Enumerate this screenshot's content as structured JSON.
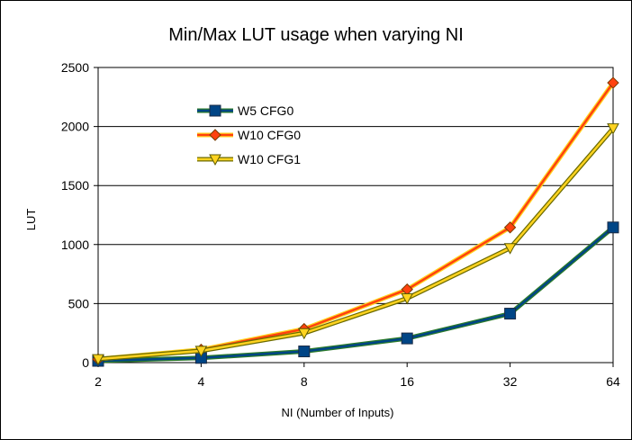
{
  "chart_data": {
    "type": "line",
    "title": "Min/Max LUT usage when varying NI",
    "xlabel": "NI (Number of Inputs)",
    "ylabel": "LUT",
    "x": [
      2,
      4,
      8,
      16,
      32,
      64
    ],
    "x_tick_labels": [
      "2",
      "4",
      "8",
      "16",
      "32",
      "64"
    ],
    "x_scale": "log2",
    "ylim": [
      0,
      2500
    ],
    "y_ticks": [
      0,
      500,
      1000,
      1500,
      2000,
      2500
    ],
    "grid": "horizontal",
    "legend_position": "top-left",
    "series": [
      {
        "name": "W5 CFG0",
        "values": [
          15,
          40,
          95,
          205,
          415,
          1145
        ],
        "line_color": "#004586",
        "edge_color": "#2a7a2a",
        "marker": "square",
        "marker_color": "#004586"
      },
      {
        "name": "W10 CFG0",
        "values": [
          30,
          110,
          285,
          620,
          1145,
          2370
        ],
        "line_color": "#ff420e",
        "edge_color": "#ffd320",
        "marker": "diamond",
        "marker_color": "#ff420e"
      },
      {
        "name": "W10 CFG1",
        "values": [
          30,
          100,
          250,
          545,
          970,
          1985
        ],
        "line_color": "#ffd320",
        "edge_color": "#6b6b00",
        "marker": "triangle-down",
        "marker_color": "#ffd320"
      }
    ]
  }
}
